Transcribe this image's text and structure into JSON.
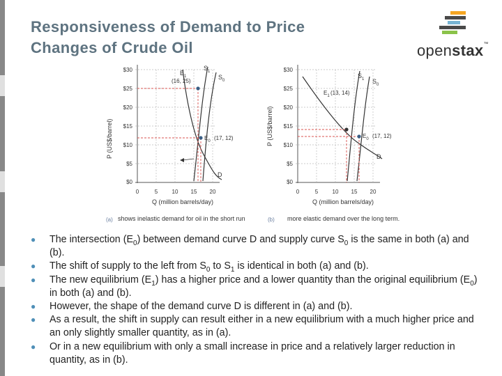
{
  "slide": {
    "title_line1": "Responsiveness of Demand to Price",
    "title_line2": "Changes of Crude Oil",
    "logo": {
      "text_light": "open",
      "text_bold": "stax",
      "tm": "™",
      "icon": "openstax-logo-icon"
    },
    "accent_color": "#5e7380",
    "bullet_color": "#4f8fb7"
  },
  "figure": {
    "a": {
      "y_axis_label": "P (US$/barrel)",
      "x_axis_label": "Q (million barrels/day)",
      "y_ticks": [
        "$30",
        "$25",
        "$20",
        "$15",
        "$10",
        "$5",
        "$0"
      ],
      "x_ticks": [
        "0",
        "5",
        "10",
        "15",
        "20"
      ],
      "curve_labels": {
        "s1": "S",
        "s1_sub": "1",
        "s0": "S",
        "s0_sub": "0",
        "d": "D"
      },
      "points": {
        "e1_name": "E",
        "e1_sub": "1",
        "e1_coords": "(16, 25)",
        "e0_name": "E",
        "e0_sub": "0",
        "e0_coords": "(17, 12)"
      },
      "caption_tag": "(a)",
      "caption": "shows inelastic demand for oil in the short run"
    },
    "b": {
      "y_axis_label": "P (US$/barrel)",
      "x_axis_label": "Q (million barrels/day)",
      "y_ticks": [
        "$30",
        "$25",
        "$20",
        "$15",
        "$10",
        "$5",
        "$0"
      ],
      "x_ticks": [
        "0",
        "5",
        "10",
        "15",
        "20"
      ],
      "curve_labels": {
        "s1": "S",
        "s1_sub": "1",
        "s0": "S",
        "s0_sub": "0",
        "d": "D"
      },
      "points": {
        "e1_name": "E",
        "e1_sub": "1",
        "e1_coords": "(13, 14)",
        "e0_name": "E",
        "e0_sub": "0",
        "e0_coords": "(17, 12)"
      },
      "caption_tag": "(b)",
      "caption": "more elastic demand over the long term."
    }
  },
  "bullets": [
    {
      "t1": "The intersection (E",
      "s1": "0",
      "t2": ") between demand curve D and supply curve S",
      "s2": "0",
      "t3": " is the same in both (a) and (b)."
    },
    {
      "t1": "The shift of supply to the left from S",
      "s1": "0",
      "t2": " to S",
      "s2": "1",
      "t3": " is identical in both (a) and (b)."
    },
    {
      "t1": "The new equilibrium (E",
      "s1": "1",
      "t2": ") has a higher price and a lower quantity than the original equilibrium (E",
      "s2": "0",
      "t3": ") in both (a) and (b)."
    },
    {
      "t1": "However, the shape of the demand curve D is different in (a) and (b).",
      "s1": "",
      "t2": "",
      "s2": "",
      "t3": ""
    },
    {
      "t1": "As a result, the shift in supply can result either in a new equilibrium with a much higher price and an only slightly smaller quantity, as in (a).",
      "s1": "",
      "t2": "",
      "s2": "",
      "t3": ""
    },
    {
      "t1": "Or in a new equilibrium with only a small increase in price and a relatively larger reduction in quantity, as in (b).",
      "s1": "",
      "t2": "",
      "s2": "",
      "t3": ""
    }
  ],
  "bullet_glyph": "●"
}
